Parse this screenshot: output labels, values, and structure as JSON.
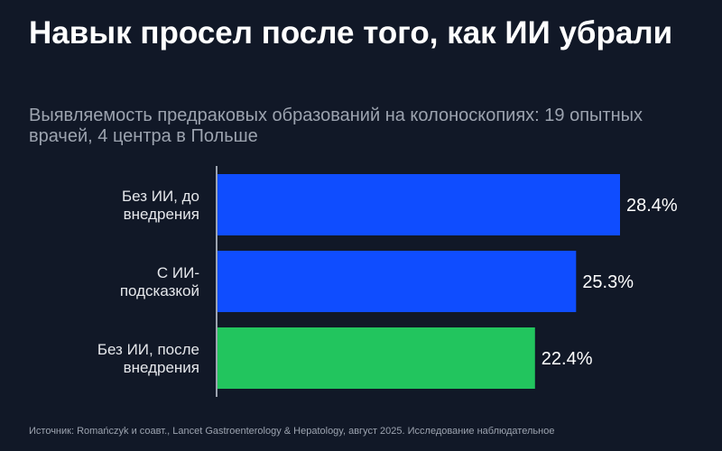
{
  "header": {
    "title": "Навык просел после того, как ИИ убрали",
    "subtitle": "Выявляемость предраковых образований на колоноскопиях: 19 опытных врачей, 4 центра в Польше"
  },
  "footer": {
    "source": "Источник: Romańczyk и соавт., Lancet Gastroenterology & Hepatology, август 2025. Исследование наблюдательное"
  },
  "chart_data": {
    "type": "bar",
    "orientation": "horizontal",
    "title": "Навык просел после того, как ИИ убрали",
    "subtitle": "Выявляемость предраковых образований на колоноскопиях: 19 опытных врачей, 4 центра в Польше",
    "categories": [
      [
        "Без ИИ, до",
        "внедрения"
      ],
      [
        "С ИИ-",
        "подсказкой"
      ],
      [
        "Без ИИ, после",
        "внедрения"
      ]
    ],
    "values": [
      28.4,
      25.3,
      22.4
    ],
    "value_labels": [
      "28.4%",
      "25.3%",
      "22.4%"
    ],
    "colors": [
      "#0f4dff",
      "#0f4dff",
      "#22c55e"
    ],
    "unit": "%",
    "xlim": [
      0,
      30
    ],
    "grid": false,
    "legend": "none"
  }
}
